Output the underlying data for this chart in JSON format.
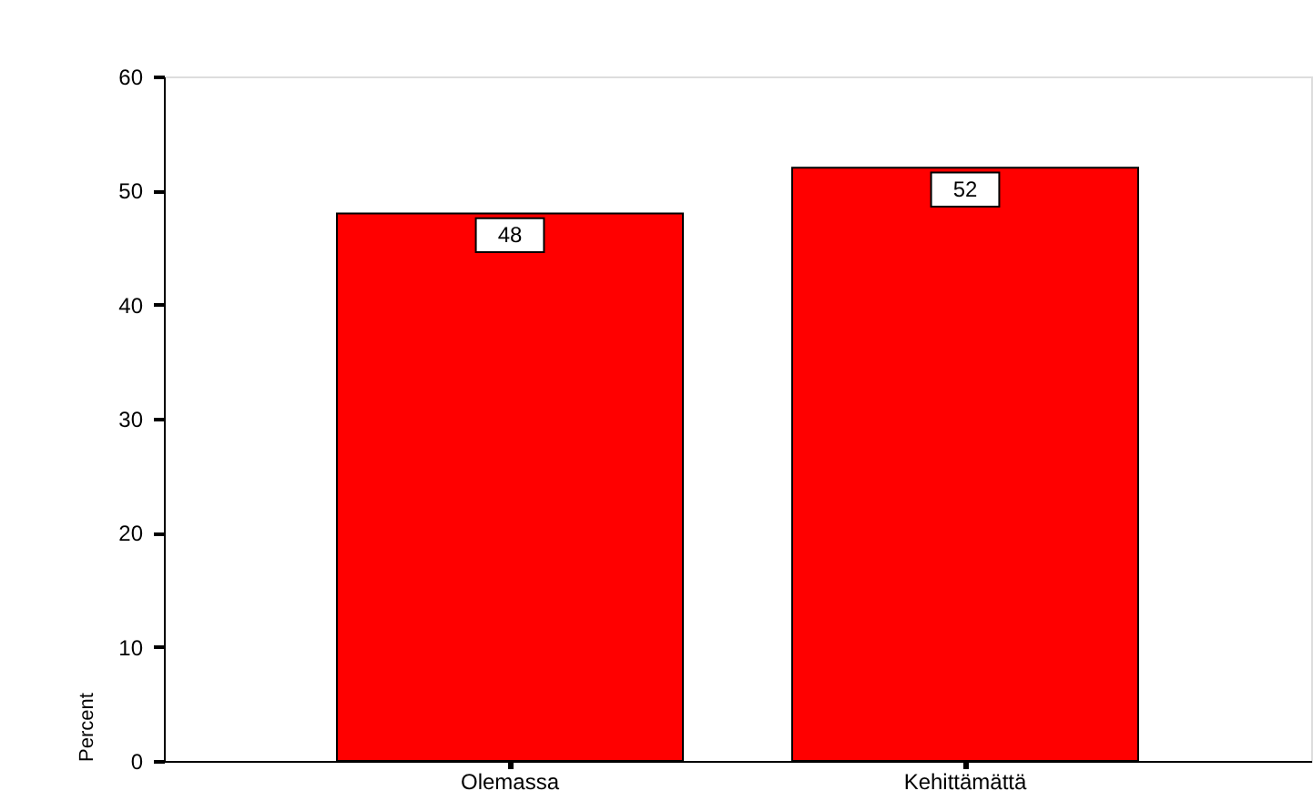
{
  "chart_data": {
    "type": "bar",
    "ylabel": "Percent",
    "categories": [
      "Olemassa",
      "Kehittämättä"
    ],
    "values": [
      48,
      52
    ],
    "color": "#ff0000",
    "data_labels": true,
    "ylim": [
      0,
      60
    ],
    "yticks": [
      0,
      10,
      20,
      30,
      40,
      50,
      60
    ],
    "grid": false
  }
}
